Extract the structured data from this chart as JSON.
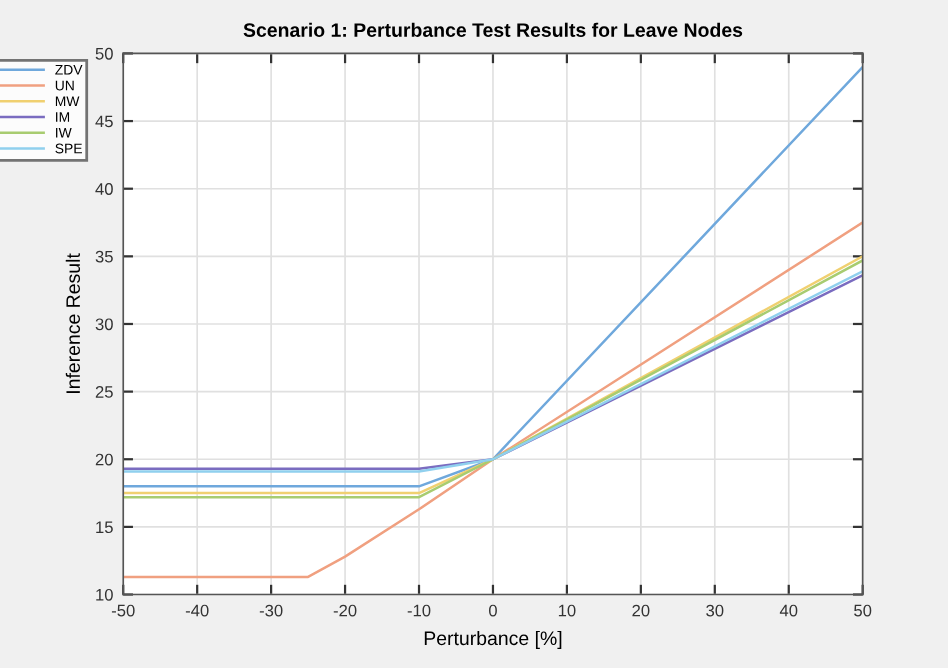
{
  "chart_data": {
    "type": "line",
    "title": "Scenario 1: Perturbance Test Results for Leave Nodes",
    "xlabel": "Perturbance [%]",
    "ylabel": "Inference Result",
    "x": [
      -50,
      -25,
      -20,
      -10,
      0,
      50
    ],
    "series": [
      {
        "name": "ZDV",
        "color": "#6fa8dc",
        "values": [
          18,
          18,
          18,
          18,
          20,
          49
        ]
      },
      {
        "name": "UN",
        "color": "#f0a080",
        "values": [
          11.3,
          11.3,
          12.8,
          16.3,
          20,
          37.5
        ]
      },
      {
        "name": "MW",
        "color": "#f0d070",
        "values": [
          17.5,
          17.5,
          17.5,
          17.5,
          20,
          35
        ]
      },
      {
        "name": "IM",
        "color": "#7a6cc0",
        "values": [
          19.3,
          19.3,
          19.3,
          19.3,
          20,
          33.6
        ]
      },
      {
        "name": "IW",
        "color": "#a8cc70",
        "values": [
          17.2,
          17.2,
          17.2,
          17.2,
          20,
          34.7
        ]
      },
      {
        "name": "SPE",
        "color": "#90d0ee",
        "values": [
          19.1,
          19.1,
          19.1,
          19.1,
          20,
          33.9
        ]
      }
    ],
    "xlim": [
      -50,
      50
    ],
    "ylim": [
      10,
      50
    ],
    "xticks": [
      -50,
      -40,
      -30,
      -20,
      -10,
      0,
      10,
      20,
      30,
      40,
      50
    ],
    "yticks": [
      10,
      15,
      20,
      25,
      30,
      35,
      40,
      45,
      50
    ],
    "grid": true,
    "legend": "top left",
    "marker": "none",
    "line_style": "solid"
  }
}
